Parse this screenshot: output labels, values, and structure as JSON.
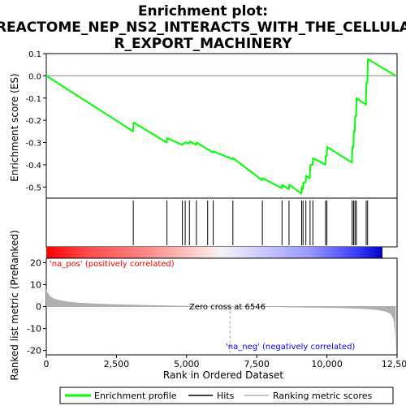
{
  "title_line1": "Enrichment plot:",
  "title_line2": "REACTOME_NEP_NS2_INTERACTS_WITH_THE_CELLULA",
  "title_line3": "R_EXPORT_MACHINERY",
  "ylabel_top": "Enrichment score (ES)",
  "ylabel_bottom": "Ranked list metric (PreRanked)",
  "xlabel": "Rank in Ordered Dataset",
  "pos_label": "'na_pos' (positively correlated)",
  "neg_label": "'na_neg' (negatively correlated)",
  "zero_cross_label": "Zero cross at 6546",
  "legend": {
    "enrichment": "Enrichment profile",
    "hits": "Hits",
    "ranking": "Ranking metric scores"
  },
  "colors": {
    "enrichment_line": "#00ff00",
    "hits": "#000000",
    "metric_fill": "#b0b0b0",
    "pos_color": "#ff0000",
    "neg_color": "#0000ff",
    "axis": "#000000"
  },
  "chart_data": {
    "type": "line",
    "x_total": 12500,
    "zero_cross": 6546,
    "es_panel": {
      "ylim": [
        -0.55,
        0.1
      ],
      "yticks": [
        "0.1",
        "0.0",
        "-0.1",
        "-0.2",
        "-0.3",
        "-0.4",
        "-0.5"
      ],
      "ytick_values": [
        0.1,
        0.0,
        -0.1,
        -0.2,
        -0.3,
        -0.4,
        -0.5
      ]
    },
    "metric_panel": {
      "ylim": [
        -22,
        22
      ],
      "yticks": [
        "20",
        "10",
        "0",
        "-10",
        "-20"
      ],
      "ytick_values": [
        20,
        10,
        0,
        -10,
        -20
      ]
    },
    "xticks": [
      "0",
      "2,500",
      "5,000",
      "7,500",
      "10,000",
      "12,500"
    ],
    "xtick_values": [
      0,
      2500,
      5000,
      7500,
      10000,
      12500
    ],
    "hits": [
      3100,
      4300,
      4850,
      4950,
      5100,
      5350,
      5750,
      5950,
      6650,
      7700,
      8400,
      8650,
      9100,
      9150,
      9250,
      9400,
      9500,
      9950,
      10000,
      10900,
      10950,
      11000,
      11050,
      11400,
      11450
    ],
    "es_curve": [
      [
        0,
        0.0
      ],
      [
        3100,
        -0.25
      ],
      [
        3110,
        -0.21
      ],
      [
        4290,
        -0.3
      ],
      [
        4300,
        -0.28
      ],
      [
        4840,
        -0.31
      ],
      [
        4850,
        -0.31
      ],
      [
        4940,
        -0.3
      ],
      [
        4960,
        -0.3
      ],
      [
        5090,
        -0.305
      ],
      [
        5110,
        -0.295
      ],
      [
        5340,
        -0.31
      ],
      [
        5360,
        -0.3
      ],
      [
        5740,
        -0.33
      ],
      [
        5760,
        -0.33
      ],
      [
        5940,
        -0.345
      ],
      [
        5960,
        -0.34
      ],
      [
        6640,
        -0.375
      ],
      [
        6660,
        -0.37
      ],
      [
        7690,
        -0.47
      ],
      [
        7710,
        -0.46
      ],
      [
        8390,
        -0.505
      ],
      [
        8410,
        -0.49
      ],
      [
        8640,
        -0.51
      ],
      [
        8660,
        -0.49
      ],
      [
        9090,
        -0.53
      ],
      [
        9110,
        -0.5
      ],
      [
        9140,
        -0.51
      ],
      [
        9160,
        -0.48
      ],
      [
        9240,
        -0.48
      ],
      [
        9260,
        -0.45
      ],
      [
        9390,
        -0.46
      ],
      [
        9410,
        -0.4
      ],
      [
        9490,
        -0.4
      ],
      [
        9510,
        -0.37
      ],
      [
        9940,
        -0.4
      ],
      [
        9960,
        -0.36
      ],
      [
        9990,
        -0.36
      ],
      [
        10010,
        -0.32
      ],
      [
        10890,
        -0.39
      ],
      [
        10910,
        -0.32
      ],
      [
        10940,
        -0.32
      ],
      [
        10960,
        -0.25
      ],
      [
        10990,
        -0.25
      ],
      [
        11010,
        -0.18
      ],
      [
        11040,
        -0.18
      ],
      [
        11060,
        -0.1
      ],
      [
        11390,
        -0.13
      ],
      [
        11410,
        -0.03
      ],
      [
        11440,
        -0.03
      ],
      [
        11460,
        0.075
      ],
      [
        12450,
        0.0
      ]
    ],
    "metric_profile": [
      [
        0,
        8.0
      ],
      [
        20,
        7.0
      ],
      [
        60,
        6.0
      ],
      [
        150,
        4.5
      ],
      [
        300,
        3.5
      ],
      [
        500,
        2.8
      ],
      [
        800,
        2.2
      ],
      [
        1200,
        1.7
      ],
      [
        1800,
        1.3
      ],
      [
        2500,
        1.0
      ],
      [
        3500,
        0.7
      ],
      [
        4500,
        0.4
      ],
      [
        5500,
        0.2
      ],
      [
        6546,
        0.0
      ],
      [
        7500,
        -0.15
      ],
      [
        8500,
        -0.3
      ],
      [
        9500,
        -0.5
      ],
      [
        10500,
        -0.7
      ],
      [
        11200,
        -1.0
      ],
      [
        11800,
        -1.6
      ],
      [
        12100,
        -2.3
      ],
      [
        12250,
        -3.2
      ],
      [
        12350,
        -5.0
      ],
      [
        12400,
        -8.0
      ],
      [
        12430,
        -13.0
      ],
      [
        12450,
        -21.0
      ]
    ]
  }
}
